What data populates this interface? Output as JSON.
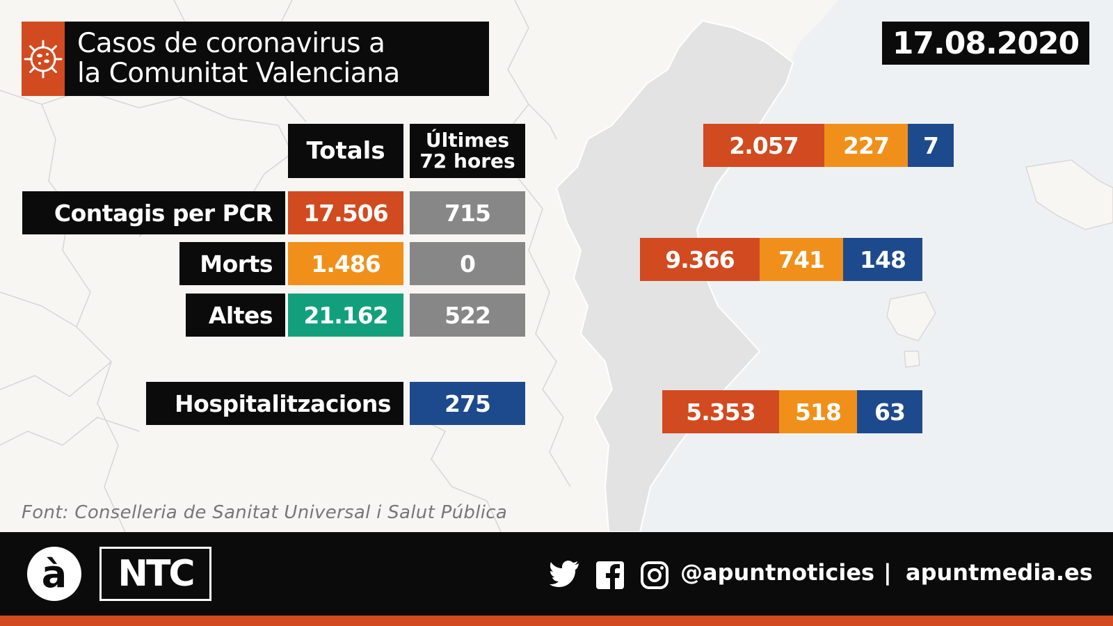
{
  "header": {
    "title_line1": "Casos de coronavirus a",
    "title_line2": "la Comunitat Valenciana",
    "date": "17.08.2020"
  },
  "table": {
    "col_totals": "Totals",
    "col_last_line1": "Últimes",
    "col_last_line2": "72 hores",
    "rows": [
      {
        "label": "Contagis per PCR",
        "total": "17.506",
        "last72": "715"
      },
      {
        "label": "Morts",
        "total": "1.486",
        "last72": "0"
      },
      {
        "label": "Altes",
        "total": "21.162",
        "last72": "522"
      }
    ],
    "hospital": {
      "label": "Hospitalitzacions",
      "value": "275"
    }
  },
  "provinces": [
    {
      "contagis": "2.057",
      "morts": "227",
      "hospital": "7"
    },
    {
      "contagis": "9.366",
      "morts": "741",
      "hospital": "148"
    },
    {
      "contagis": "5.353",
      "morts": "518",
      "hospital": "63"
    }
  ],
  "source": "Font: Conselleria de Sanitat Universal i Salut Pública",
  "footer": {
    "logo_letter": "à",
    "logo_ntc": "NTC",
    "icons": [
      "twitter-icon",
      "facebook-icon",
      "instagram-icon"
    ],
    "handle": "@apuntnoticies",
    "separator": "|",
    "site": "apuntmedia.es"
  },
  "colors": {
    "contagis": "#d24a1f",
    "morts": "#f0901a",
    "altes": "#12a07c",
    "last72": "#878787",
    "hospital": "#1d4a8c",
    "dark": "#0b0b0b"
  }
}
